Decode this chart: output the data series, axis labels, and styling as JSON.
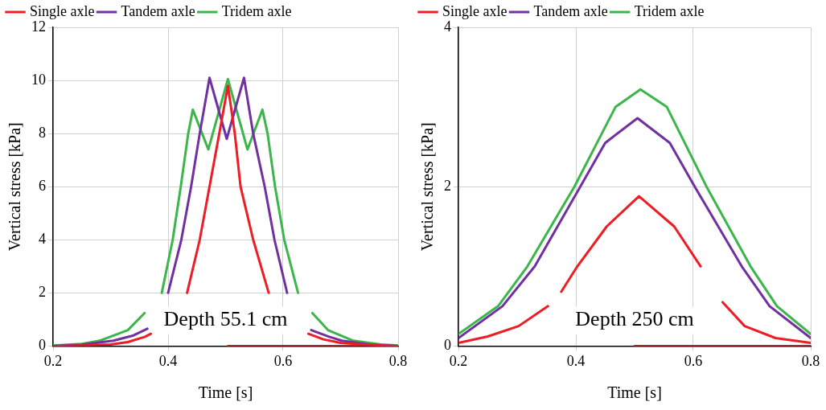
{
  "chart_data": [
    {
      "type": "line",
      "xlabel": "Time [s]",
      "ylabel": "Vertical stress [kPa]",
      "xlim": [
        0.2,
        0.8
      ],
      "xticks": [
        0.2,
        0.4,
        0.6,
        0.8
      ],
      "ylim": [
        0,
        12
      ],
      "yticks": [
        0,
        2,
        4,
        6,
        8,
        10,
        12
      ],
      "grid": true,
      "legend": "top",
      "marker": "none",
      "line_style": "solid",
      "annotations": [
        "Depth 55.1 cm"
      ],
      "series": [
        {
          "name": "Single axle",
          "color": "#ee1c25",
          "x": [
            0.2,
            0.25,
            0.3,
            0.33,
            0.36,
            0.37,
            0.4,
            0.433,
            0.455,
            0.472,
            0.489,
            0.504,
            0.516,
            0.526,
            0.548,
            0.575,
            0.61,
            0.644,
            0.67,
            0.7,
            0.75,
            0.8
          ],
          "values": [
            0,
            0.02,
            0.06,
            0.15,
            0.35,
            0.46,
            null,
            2,
            4,
            6,
            8,
            9.8,
            8,
            6,
            4,
            2,
            null,
            0.46,
            0.25,
            0.12,
            0.04,
            0
          ]
        },
        {
          "name": "Tandem axle",
          "color": "#7030a0",
          "x": [
            0.2,
            0.25,
            0.305,
            0.34,
            0.364,
            0.38,
            0.4,
            0.423,
            0.44,
            0.455,
            0.472,
            0.502,
            0.532,
            0.548,
            0.568,
            0.585,
            0.607,
            0.625,
            0.649,
            0.68,
            0.702,
            0.75,
            0.8
          ],
          "values": [
            0,
            0.05,
            0.2,
            0.4,
            0.65,
            null,
            2,
            4,
            6,
            8,
            10.1,
            7.8,
            10.1,
            8,
            6,
            4,
            2,
            null,
            0.6,
            0.35,
            0.2,
            0.06,
            0
          ]
        },
        {
          "name": "Tridem axle",
          "color": "#3cb54a",
          "x": [
            0.2,
            0.25,
            0.281,
            0.33,
            0.359,
            0.375,
            0.389,
            0.408,
            0.422,
            0.435,
            0.443,
            0.47,
            0.504,
            0.538,
            0.564,
            0.573,
            0.586,
            0.602,
            0.626,
            0.636,
            0.651,
            0.678,
            0.722,
            0.77,
            0.8
          ],
          "values": [
            0.02,
            0.08,
            0.2,
            0.6,
            1.24,
            null,
            2,
            4,
            6,
            8,
            8.9,
            7.4,
            10.05,
            7.4,
            8.9,
            8,
            6,
            4,
            2,
            null,
            1.24,
            0.6,
            0.2,
            0.06,
            0.02
          ]
        },
        {
          "color": "#ee1c25",
          "x": [
            0.504,
            0.8
          ],
          "values": [
            0,
            0
          ]
        }
      ]
    },
    {
      "type": "line",
      "xlabel": "Time [s]",
      "ylabel": "Vertical stress [kPa]",
      "xlim": [
        0.2,
        0.8
      ],
      "xticks": [
        0.2,
        0.4,
        0.6,
        0.8
      ],
      "ylim": [
        0,
        4
      ],
      "yticks": [
        0,
        2,
        4
      ],
      "grid": true,
      "legend": "top",
      "marker": "none",
      "line_style": "solid",
      "annotations": [
        "Depth 250 cm"
      ],
      "series": [
        {
          "name": "Single axle",
          "color": "#ee1c25",
          "x": [
            0.2,
            0.25,
            0.3025,
            0.3525,
            0.365,
            0.375,
            0.4025,
            0.4525,
            0.5075,
            0.5675,
            0.6125,
            0.635,
            0.65,
            0.6875,
            0.74,
            0.8
          ],
          "values": [
            0.04,
            0.12,
            0.25,
            0.5,
            null,
            0.68,
            1,
            1.5,
            1.88,
            1.5,
            1,
            null,
            0.55,
            0.25,
            0.1,
            0.04
          ]
        },
        {
          "name": "Tandem axle",
          "color": "#7030a0",
          "x": [
            0.2,
            0.275,
            0.33,
            0.4075,
            0.45,
            0.505,
            0.56,
            0.6025,
            0.6825,
            0.73,
            0.8
          ],
          "values": [
            0.1,
            0.5,
            1,
            2,
            2.55,
            2.86,
            2.55,
            2,
            1,
            0.5,
            0.1
          ]
        },
        {
          "name": "Tridem axle",
          "color": "#3cb54a",
          "x": [
            0.2,
            0.2675,
            0.3175,
            0.3975,
            0.4675,
            0.51,
            0.555,
            0.6225,
            0.6975,
            0.7425,
            0.8
          ],
          "values": [
            0.15,
            0.5,
            1,
            2,
            3,
            3.22,
            3,
            2,
            1,
            0.5,
            0.15
          ]
        },
        {
          "color": "#ee1c25",
          "x": [
            0.5,
            0.8
          ],
          "values": [
            0,
            0
          ]
        }
      ]
    }
  ]
}
